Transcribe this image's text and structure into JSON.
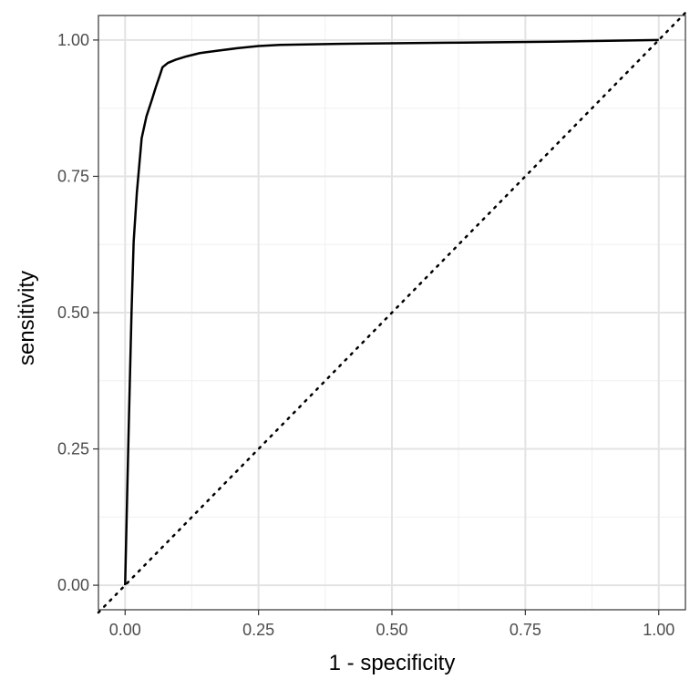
{
  "chart_data": {
    "type": "line",
    "title": "",
    "xlabel": "1 - specificity",
    "ylabel": "sensitivity",
    "xlim": [
      -0.05,
      1.05
    ],
    "ylim": [
      -0.045,
      1.045
    ],
    "grid": true,
    "x_ticks": [
      0.0,
      0.25,
      0.5,
      0.75,
      1.0
    ],
    "x_tick_labels": [
      "0.00",
      "0.25",
      "0.50",
      "0.75",
      "1.00"
    ],
    "y_ticks": [
      0.0,
      0.25,
      0.5,
      0.75,
      1.0
    ],
    "y_tick_labels": [
      "0.00",
      "0.25",
      "0.50",
      "0.75",
      "1.00"
    ],
    "series": [
      {
        "style": "solid",
        "color": "#000000",
        "x": [
          0.0,
          0.003,
          0.007,
          0.012,
          0.016,
          0.022,
          0.031,
          0.04,
          0.05,
          0.058,
          0.065,
          0.07,
          0.08,
          0.095,
          0.115,
          0.14,
          0.17,
          0.21,
          0.25,
          0.29,
          0.4,
          0.6,
          0.8,
          1.0
        ],
        "y": [
          0.0,
          0.13,
          0.3,
          0.5,
          0.63,
          0.72,
          0.82,
          0.86,
          0.89,
          0.915,
          0.935,
          0.95,
          0.958,
          0.964,
          0.97,
          0.976,
          0.98,
          0.985,
          0.989,
          0.991,
          0.993,
          0.995,
          0.997,
          1.0
        ]
      },
      {
        "style": "dotted",
        "color": "#000000",
        "x": [
          -0.05,
          1.05
        ],
        "y": [
          -0.05,
          1.05
        ]
      }
    ]
  }
}
